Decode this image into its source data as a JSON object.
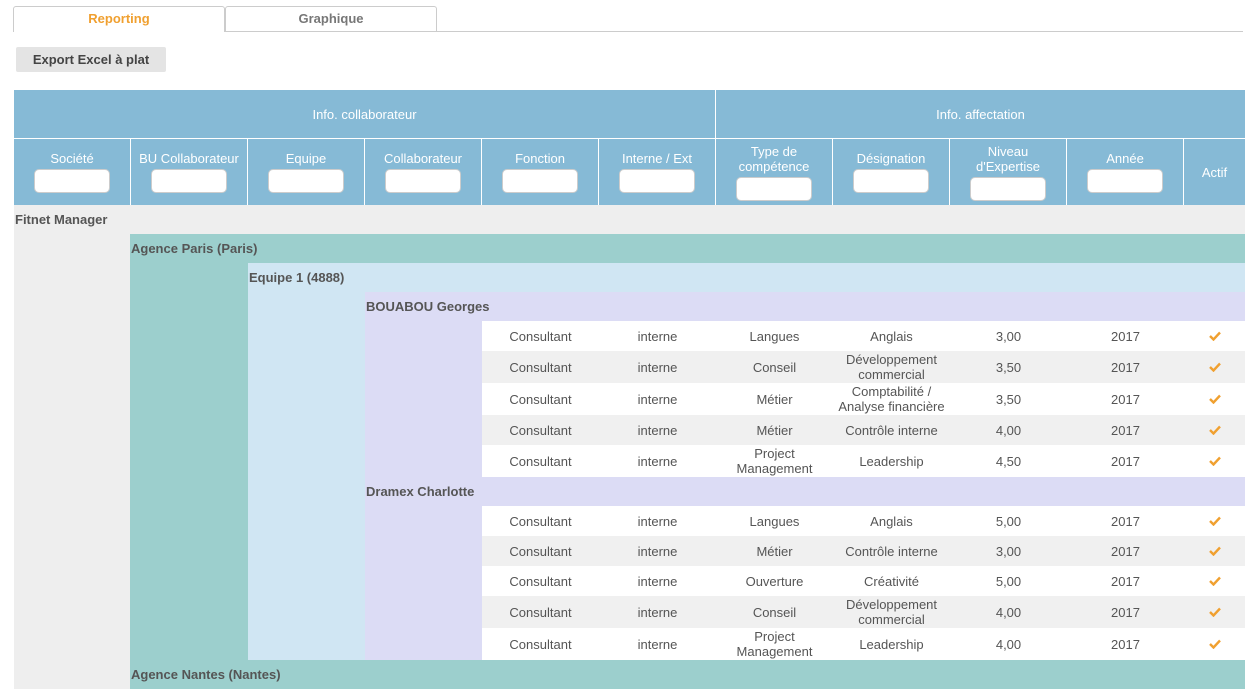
{
  "tabs": [
    "Reporting",
    "Graphique"
  ],
  "export_button": "Export Excel à plat",
  "table": {
    "group_headers": [
      "Info. collaborateur",
      "Info. affectation"
    ],
    "columns": [
      "Société",
      "BU Collaborateur",
      "Equipe",
      "Collaborateur",
      "Fonction",
      "Interne / Ext",
      "Type de compétence",
      "Désignation",
      "Niveau d'Expertise",
      "Année",
      "Actif"
    ],
    "company": "Fitnet Manager",
    "agencies": [
      {
        "name": "Agence Paris (Paris)",
        "teams": [
          {
            "name": "Equipe 1 (4888)",
            "collaborators": [
              {
                "name": "BOUABOU Georges",
                "rows": [
                  [
                    "Consultant",
                    "interne",
                    "Langues",
                    "Anglais",
                    "3,00",
                    "2017"
                  ],
                  [
                    "Consultant",
                    "interne",
                    "Conseil",
                    "Développement commercial",
                    "3,50",
                    "2017"
                  ],
                  [
                    "Consultant",
                    "interne",
                    "Métier",
                    "Comptabilité / Analyse financière",
                    "3,50",
                    "2017"
                  ],
                  [
                    "Consultant",
                    "interne",
                    "Métier",
                    "Contrôle interne",
                    "4,00",
                    "2017"
                  ],
                  [
                    "Consultant",
                    "interne",
                    "Project Management",
                    "Leadership",
                    "4,50",
                    "2017"
                  ]
                ]
              },
              {
                "name": "Dramex Charlotte",
                "rows": [
                  [
                    "Consultant",
                    "interne",
                    "Langues",
                    "Anglais",
                    "5,00",
                    "2017"
                  ],
                  [
                    "Consultant",
                    "interne",
                    "Métier",
                    "Contrôle interne",
                    "3,00",
                    "2017"
                  ],
                  [
                    "Consultant",
                    "interne",
                    "Ouverture",
                    "Créativité",
                    "5,00",
                    "2017"
                  ],
                  [
                    "Consultant",
                    "interne",
                    "Conseil",
                    "Développement commercial",
                    "4,00",
                    "2017"
                  ],
                  [
                    "Consultant",
                    "interne",
                    "Project Management",
                    "Leadership",
                    "4,00",
                    "2017"
                  ]
                ]
              }
            ]
          }
        ]
      },
      {
        "name": "Agence Nantes (Nantes)",
        "teams": []
      }
    ]
  }
}
